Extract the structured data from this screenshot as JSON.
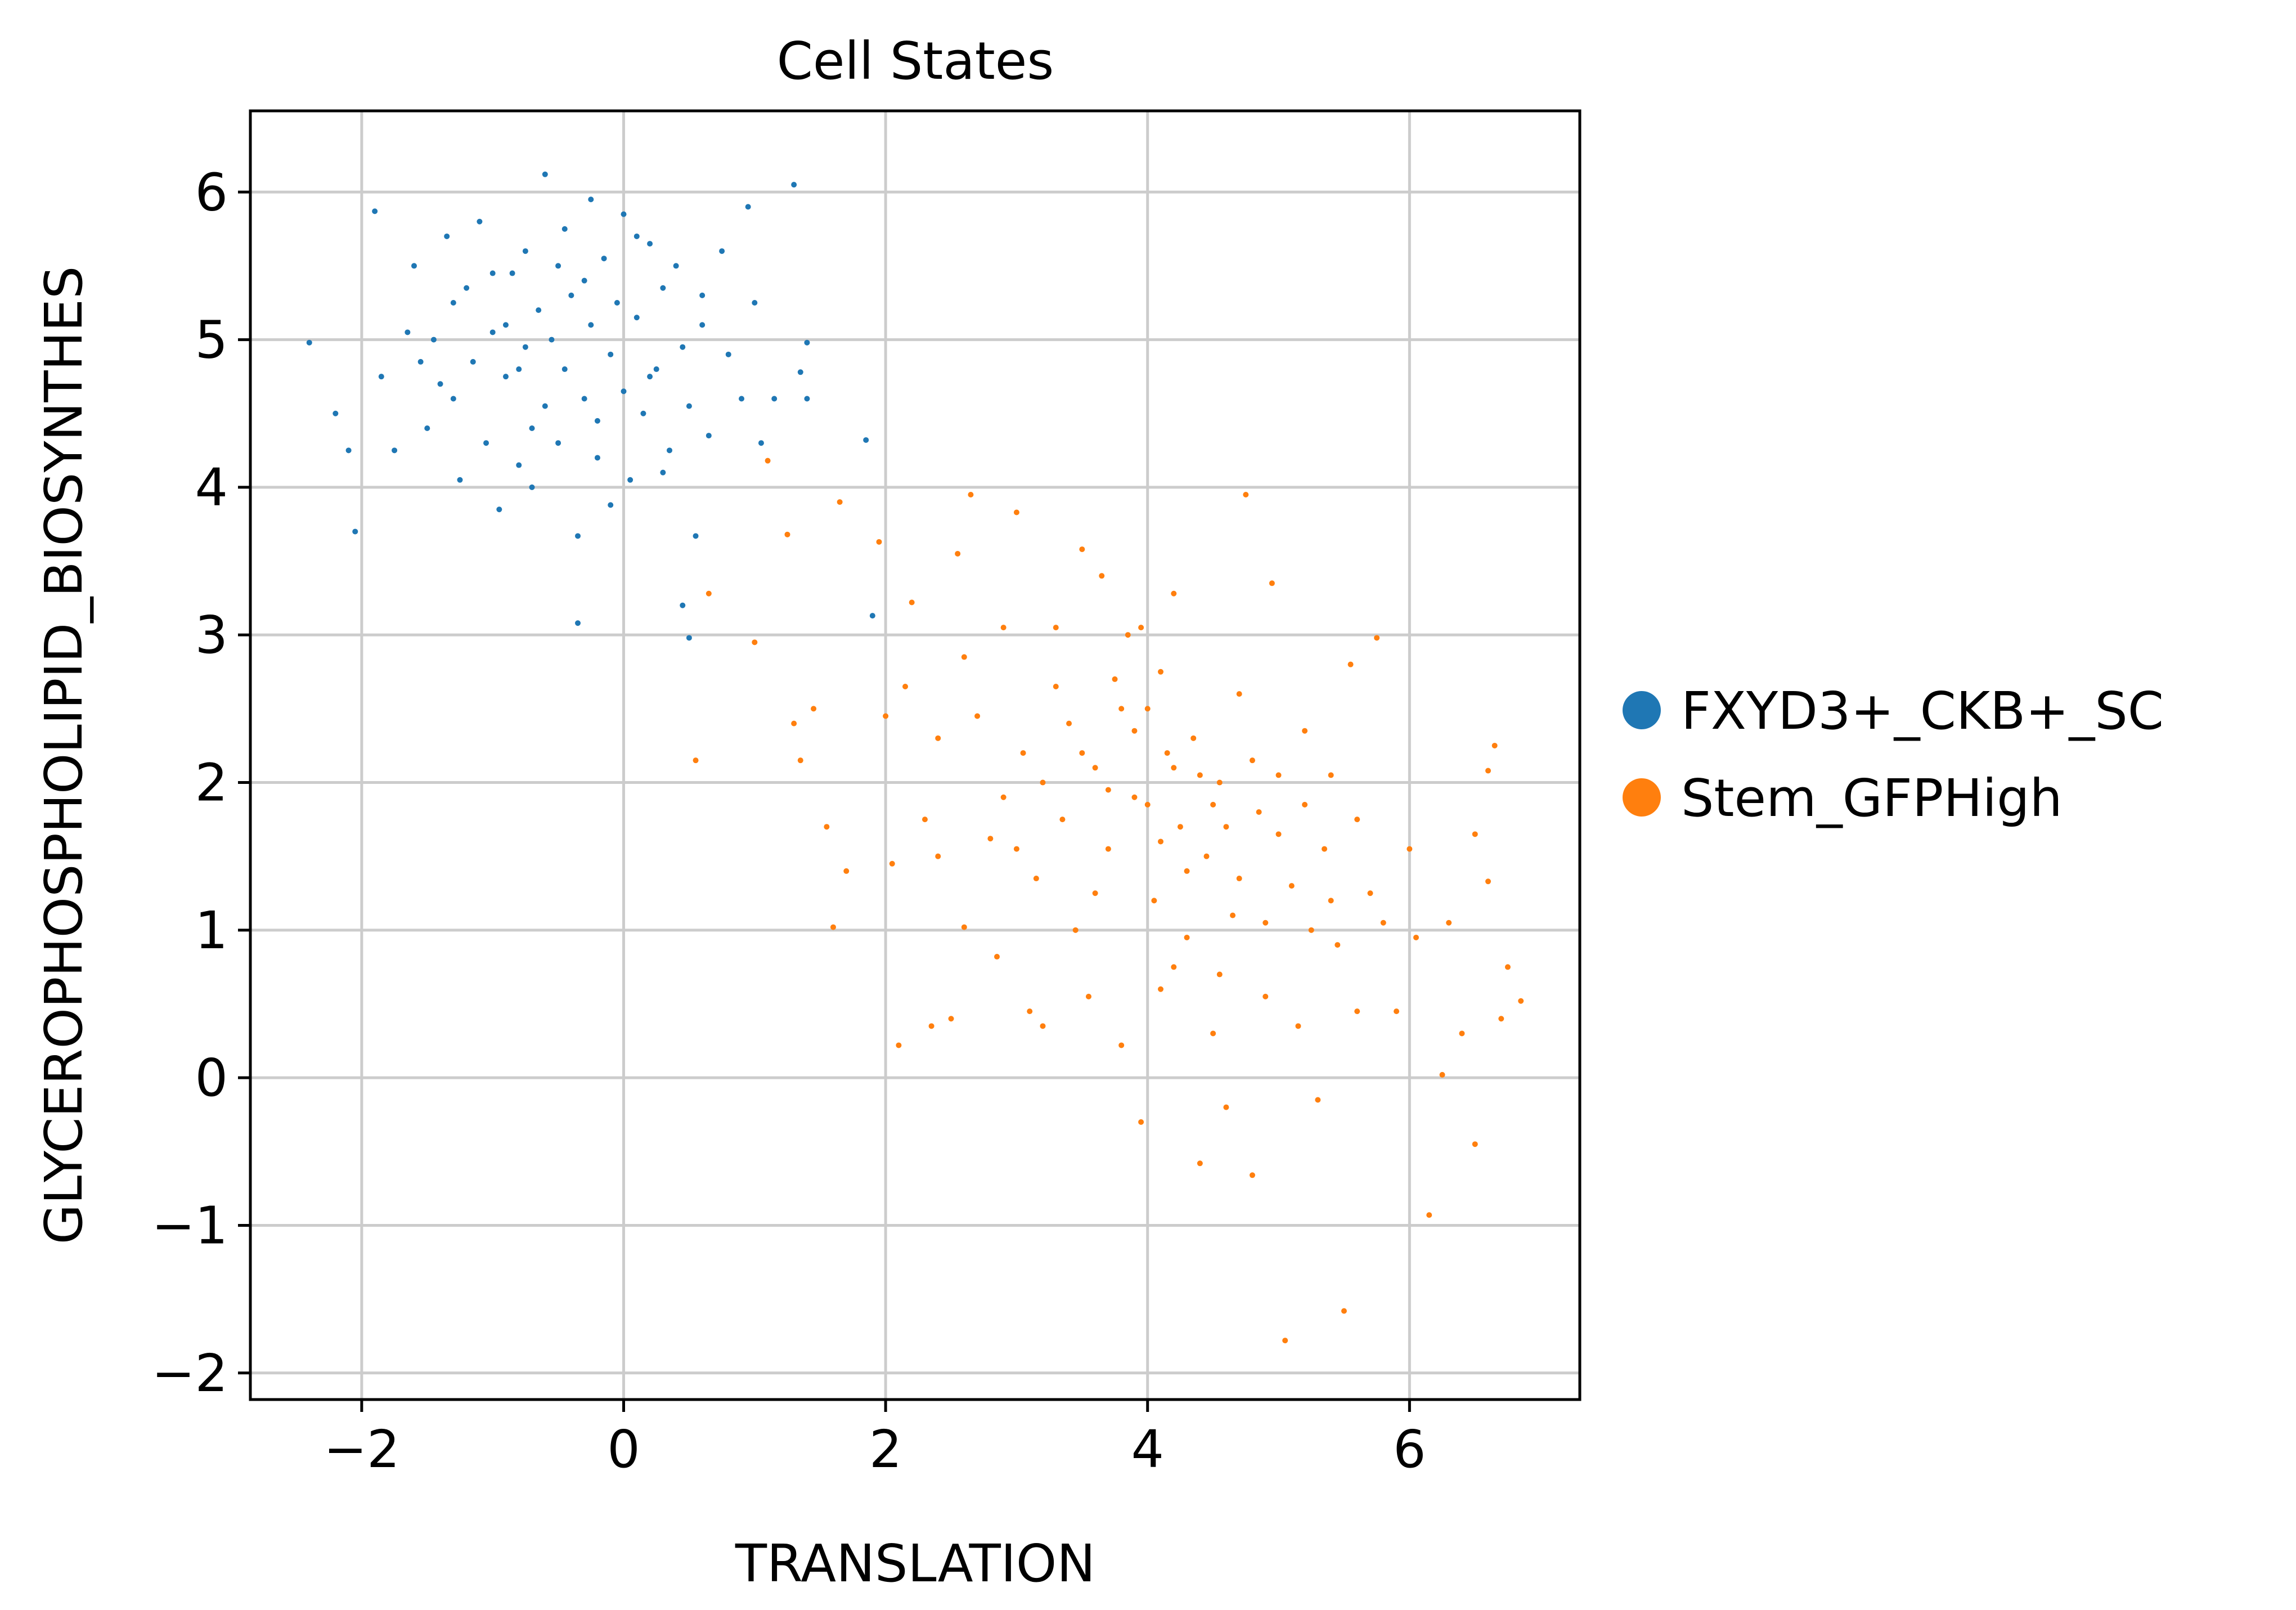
{
  "chart_data": {
    "type": "scatter",
    "title": "Cell States",
    "xlabel": "TRANSLATION",
    "ylabel": "GLYCEROPHOSPHOLIPID_BIOSYNTHES",
    "xlim": [
      -2.85,
      7.3
    ],
    "ylim": [
      -2.18,
      6.55
    ],
    "xticks": [
      -2,
      0,
      2,
      4,
      6
    ],
    "yticks": [
      -2,
      -1,
      0,
      1,
      2,
      3,
      4,
      5,
      6
    ],
    "xtick_labels": [
      "−2",
      "0",
      "2",
      "4",
      "6"
    ],
    "ytick_labels": [
      "−2",
      "−1",
      "0",
      "1",
      "2",
      "3",
      "4",
      "5",
      "6"
    ],
    "grid": true,
    "legend_position": "right",
    "series": [
      {
        "name": "FXYD3+_CKB+_SC",
        "color": "#1f77b4",
        "points": [
          [
            -2.4,
            4.98
          ],
          [
            -1.9,
            5.87
          ],
          [
            -2.2,
            4.5
          ],
          [
            -2.1,
            4.25
          ],
          [
            -2.05,
            3.7
          ],
          [
            -1.85,
            4.75
          ],
          [
            -1.75,
            4.25
          ],
          [
            -1.65,
            5.05
          ],
          [
            -1.6,
            5.5
          ],
          [
            -1.55,
            4.85
          ],
          [
            -1.5,
            4.4
          ],
          [
            -1.4,
            4.7
          ],
          [
            -1.35,
            5.7
          ],
          [
            -1.3,
            5.25
          ],
          [
            -1.3,
            4.6
          ],
          [
            -1.25,
            4.05
          ],
          [
            -1.2,
            5.35
          ],
          [
            -1.15,
            4.85
          ],
          [
            -1.1,
            5.8
          ],
          [
            -1.05,
            4.3
          ],
          [
            -1.0,
            5.05
          ],
          [
            -0.95,
            3.85
          ],
          [
            -0.9,
            4.75
          ],
          [
            -0.85,
            5.45
          ],
          [
            -0.8,
            4.15
          ],
          [
            -0.75,
            5.6
          ],
          [
            -0.75,
            4.95
          ],
          [
            -0.7,
            4.0
          ],
          [
            -0.65,
            5.2
          ],
          [
            -0.6,
            4.55
          ],
          [
            -0.6,
            6.12
          ],
          [
            -0.55,
            5.0
          ],
          [
            -0.5,
            4.3
          ],
          [
            -0.45,
            5.75
          ],
          [
            -0.45,
            4.8
          ],
          [
            -0.4,
            5.3
          ],
          [
            -0.35,
            3.67
          ],
          [
            -0.35,
            3.08
          ],
          [
            -0.3,
            4.6
          ],
          [
            -0.25,
            5.95
          ],
          [
            -0.25,
            5.1
          ],
          [
            -0.2,
            4.45
          ],
          [
            -0.15,
            5.55
          ],
          [
            -0.1,
            4.9
          ],
          [
            -0.1,
            3.88
          ],
          [
            -0.05,
            5.25
          ],
          [
            0.0,
            4.65
          ],
          [
            0.0,
            5.85
          ],
          [
            0.05,
            4.05
          ],
          [
            0.1,
            5.15
          ],
          [
            0.15,
            4.5
          ],
          [
            0.2,
            5.65
          ],
          [
            0.25,
            4.8
          ],
          [
            0.3,
            5.35
          ],
          [
            0.35,
            4.25
          ],
          [
            0.4,
            5.5
          ],
          [
            0.45,
            4.95
          ],
          [
            0.5,
            4.55
          ],
          [
            0.55,
            3.67
          ],
          [
            0.6,
            5.1
          ],
          [
            0.65,
            4.35
          ],
          [
            0.75,
            5.6
          ],
          [
            0.8,
            4.9
          ],
          [
            0.9,
            4.6
          ],
          [
            0.95,
            5.9
          ],
          [
            1.0,
            5.25
          ],
          [
            1.05,
            4.3
          ],
          [
            1.15,
            4.6
          ],
          [
            1.3,
            6.05
          ],
          [
            1.35,
            4.78
          ],
          [
            1.4,
            4.98
          ],
          [
            1.4,
            4.6
          ],
          [
            1.85,
            4.32
          ],
          [
            1.9,
            3.13
          ],
          [
            0.45,
            3.2
          ],
          [
            0.5,
            2.98
          ],
          [
            -0.9,
            5.1
          ],
          [
            -0.7,
            4.4
          ],
          [
            -0.5,
            5.5
          ],
          [
            -0.2,
            4.2
          ],
          [
            0.1,
            5.7
          ],
          [
            0.3,
            4.1
          ],
          [
            -1.45,
            5.0
          ],
          [
            -1.0,
            5.45
          ],
          [
            -0.3,
            5.4
          ],
          [
            0.2,
            4.75
          ],
          [
            0.6,
            5.3
          ],
          [
            -0.8,
            4.8
          ]
        ]
      },
      {
        "name": "Stem_GFPHigh",
        "color": "#ff7f0e",
        "points": [
          [
            1.1,
            4.18
          ],
          [
            1.0,
            2.95
          ],
          [
            0.55,
            2.15
          ],
          [
            0.65,
            3.28
          ],
          [
            1.25,
            3.68
          ],
          [
            1.3,
            2.4
          ],
          [
            1.35,
            2.15
          ],
          [
            1.45,
            2.5
          ],
          [
            1.55,
            1.7
          ],
          [
            1.6,
            1.02
          ],
          [
            1.65,
            3.9
          ],
          [
            1.7,
            1.4
          ],
          [
            1.95,
            3.63
          ],
          [
            2.0,
            2.45
          ],
          [
            2.05,
            1.45
          ],
          [
            2.1,
            0.22
          ],
          [
            2.15,
            2.65
          ],
          [
            2.2,
            3.22
          ],
          [
            2.3,
            1.75
          ],
          [
            2.35,
            0.35
          ],
          [
            2.4,
            2.3
          ],
          [
            2.5,
            0.4
          ],
          [
            2.55,
            3.55
          ],
          [
            2.6,
            1.02
          ],
          [
            2.65,
            3.95
          ],
          [
            2.7,
            2.45
          ],
          [
            2.8,
            1.62
          ],
          [
            2.85,
            0.82
          ],
          [
            2.9,
            3.05
          ],
          [
            3.0,
            3.83
          ],
          [
            3.05,
            2.2
          ],
          [
            3.1,
            0.45
          ],
          [
            3.15,
            1.35
          ],
          [
            3.2,
            0.35
          ],
          [
            3.3,
            3.05
          ],
          [
            3.35,
            1.75
          ],
          [
            3.4,
            2.4
          ],
          [
            3.45,
            1.0
          ],
          [
            3.5,
            3.58
          ],
          [
            3.55,
            0.55
          ],
          [
            3.6,
            2.1
          ],
          [
            3.65,
            3.4
          ],
          [
            3.7,
            1.55
          ],
          [
            3.75,
            2.7
          ],
          [
            3.8,
            0.22
          ],
          [
            3.85,
            3.0
          ],
          [
            3.9,
            1.9
          ],
          [
            3.95,
            -0.3
          ],
          [
            4.0,
            2.5
          ],
          [
            4.05,
            1.2
          ],
          [
            4.1,
            0.6
          ],
          [
            4.15,
            2.2
          ],
          [
            4.2,
            3.28
          ],
          [
            4.25,
            1.7
          ],
          [
            4.3,
            0.95
          ],
          [
            4.35,
            2.3
          ],
          [
            4.4,
            -0.58
          ],
          [
            4.45,
            1.5
          ],
          [
            4.5,
            0.3
          ],
          [
            4.55,
            2.0
          ],
          [
            4.6,
            -0.2
          ],
          [
            4.65,
            1.1
          ],
          [
            4.7,
            2.6
          ],
          [
            4.75,
            3.95
          ],
          [
            4.8,
            -0.66
          ],
          [
            4.85,
            1.8
          ],
          [
            4.9,
            0.55
          ],
          [
            4.95,
            3.35
          ],
          [
            5.0,
            2.05
          ],
          [
            5.05,
            -1.78
          ],
          [
            5.1,
            1.3
          ],
          [
            5.15,
            0.35
          ],
          [
            5.2,
            2.35
          ],
          [
            5.25,
            1.0
          ],
          [
            5.3,
            -0.15
          ],
          [
            5.35,
            1.55
          ],
          [
            5.4,
            2.05
          ],
          [
            5.45,
            0.9
          ],
          [
            5.5,
            -1.58
          ],
          [
            5.55,
            2.8
          ],
          [
            5.6,
            0.45
          ],
          [
            5.7,
            1.25
          ],
          [
            5.75,
            2.98
          ],
          [
            5.8,
            1.05
          ],
          [
            5.9,
            0.45
          ],
          [
            6.0,
            1.55
          ],
          [
            6.05,
            0.95
          ],
          [
            6.15,
            -0.93
          ],
          [
            6.25,
            0.02
          ],
          [
            6.3,
            1.05
          ],
          [
            6.4,
            0.3
          ],
          [
            6.5,
            -0.45
          ],
          [
            6.5,
            1.65
          ],
          [
            6.6,
            2.08
          ],
          [
            6.6,
            1.33
          ],
          [
            6.65,
            2.25
          ],
          [
            6.7,
            0.4
          ],
          [
            6.75,
            0.75
          ],
          [
            6.85,
            0.52
          ],
          [
            4.2,
            2.1
          ],
          [
            3.9,
            2.35
          ],
          [
            4.5,
            1.85
          ],
          [
            4.1,
            1.6
          ],
          [
            3.7,
            1.95
          ],
          [
            4.3,
            1.4
          ],
          [
            4.6,
            1.7
          ],
          [
            3.5,
            2.2
          ],
          [
            4.0,
            1.85
          ],
          [
            4.4,
            2.05
          ],
          [
            3.8,
            2.5
          ],
          [
            4.7,
            1.35
          ],
          [
            4.2,
            0.75
          ],
          [
            5.0,
            1.65
          ],
          [
            3.3,
            2.65
          ],
          [
            2.9,
            1.9
          ],
          [
            4.8,
            2.15
          ],
          [
            5.2,
            1.85
          ],
          [
            3.6,
            1.25
          ],
          [
            4.1,
            2.75
          ],
          [
            4.9,
            1.05
          ],
          [
            3.2,
            2.0
          ],
          [
            2.6,
            2.85
          ],
          [
            5.4,
            1.2
          ],
          [
            3.0,
            1.55
          ],
          [
            4.55,
            0.7
          ],
          [
            3.95,
            3.05
          ],
          [
            5.6,
            1.75
          ],
          [
            2.4,
            1.5
          ]
        ]
      }
    ]
  }
}
